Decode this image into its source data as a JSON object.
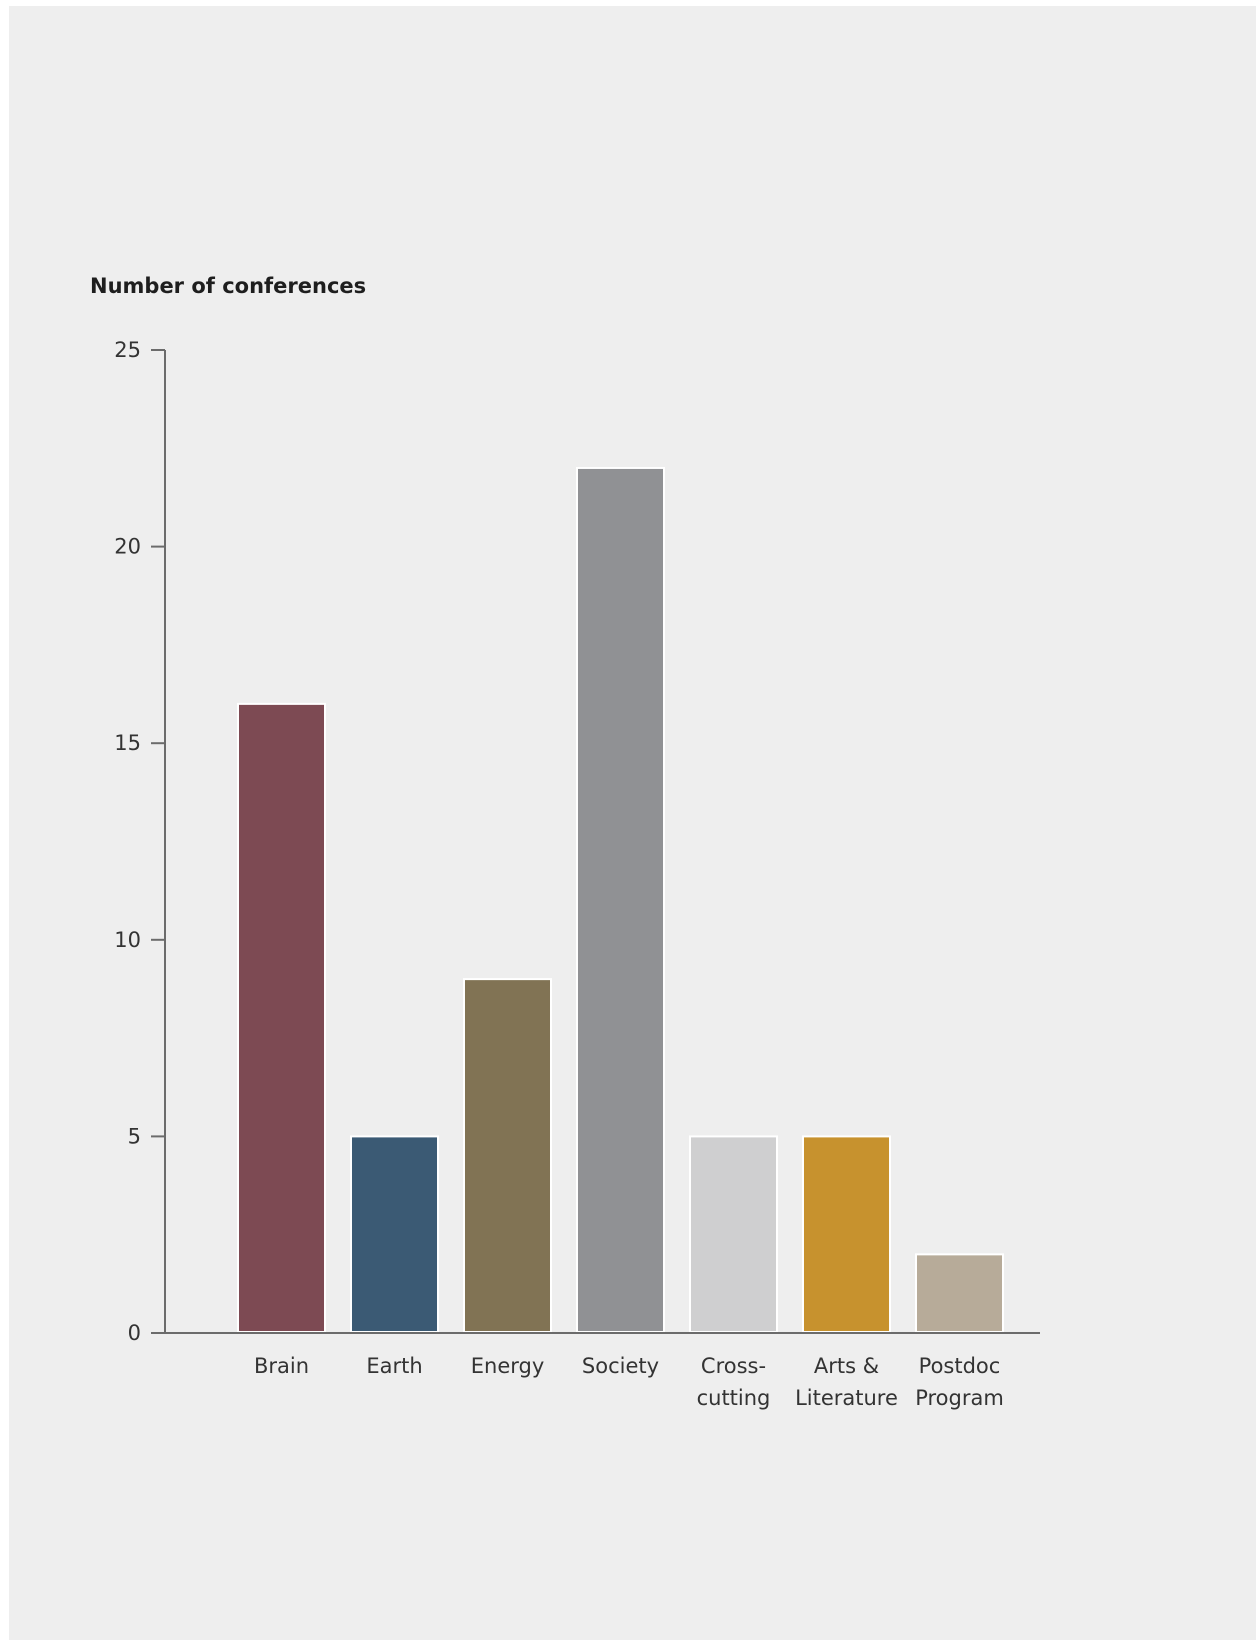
{
  "chart_data": {
    "type": "bar",
    "ylabel": "Number of conferences",
    "xlabel": "",
    "ylim": [
      0,
      25
    ],
    "yticks": [
      0,
      5,
      10,
      15,
      20,
      25
    ],
    "grid": false,
    "categories": [
      {
        "lines": [
          "Brain"
        ],
        "value": 16,
        "color": "#7d4a53"
      },
      {
        "lines": [
          "Earth"
        ],
        "value": 5,
        "color": "#3b5a74"
      },
      {
        "lines": [
          "Energy"
        ],
        "value": 9,
        "color": "#817354"
      },
      {
        "lines": [
          "Society"
        ],
        "value": 22,
        "color": "#909194"
      },
      {
        "lines": [
          "Cross-",
          "cutting"
        ],
        "value": 5,
        "color": "#cfcfd0"
      },
      {
        "lines": [
          "Arts &",
          "Literature"
        ],
        "value": 5,
        "color": "#c7922e"
      },
      {
        "lines": [
          "Postdoc",
          "Program"
        ],
        "value": 2,
        "color": "#b7ab99"
      }
    ]
  }
}
